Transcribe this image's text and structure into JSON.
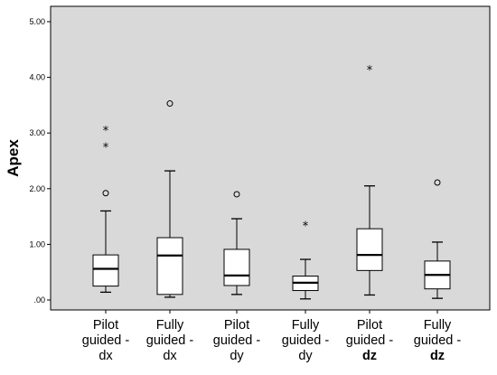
{
  "chart_data": {
    "type": "boxplot",
    "title": "",
    "xlabel": "",
    "ylabel": "Apex",
    "ylim": [
      0,
      5
    ],
    "y_ticks": [
      ".00",
      "1.00",
      "2.00",
      "3.00",
      "4.00",
      "5.00"
    ],
    "grid": false,
    "colors": {
      "plot_bg": "#d9d9d9",
      "box_fill": "#ffffff",
      "stroke": "#000000"
    },
    "categories": [
      {
        "lines": [
          "Pilot",
          "guided -",
          "dx"
        ],
        "bold_line": false
      },
      {
        "lines": [
          "Fully",
          "guided -",
          "dx"
        ],
        "bold_line": false
      },
      {
        "lines": [
          "Pilot",
          "guided -",
          "dy"
        ],
        "bold_line": false
      },
      {
        "lines": [
          "Fully",
          "guided -",
          "dy"
        ],
        "bold_line": false
      },
      {
        "lines": [
          "Pilot",
          "guided -",
          "dz"
        ],
        "bold_line": true
      },
      {
        "lines": [
          "Fully",
          "guided -",
          "dz"
        ],
        "bold_line": true
      }
    ],
    "boxes": [
      {
        "min": 0.14,
        "q1": 0.25,
        "median": 0.56,
        "q3": 0.81,
        "max": 1.6,
        "outliers": [
          1.92
        ],
        "extremes": [
          2.75,
          3.05
        ]
      },
      {
        "min": 0.05,
        "q1": 0.1,
        "median": 0.8,
        "q3": 1.12,
        "max": 2.32,
        "outliers": [
          3.53
        ],
        "extremes": []
      },
      {
        "min": 0.1,
        "q1": 0.26,
        "median": 0.44,
        "q3": 0.91,
        "max": 1.46,
        "outliers": [
          1.9
        ],
        "extremes": []
      },
      {
        "min": 0.02,
        "q1": 0.17,
        "median": 0.31,
        "q3": 0.43,
        "max": 0.73,
        "outliers": [],
        "extremes": [
          1.34
        ]
      },
      {
        "min": 0.09,
        "q1": 0.53,
        "median": 0.81,
        "q3": 1.28,
        "max": 2.05,
        "outliers": [],
        "extremes": [
          4.14
        ]
      },
      {
        "min": 0.03,
        "q1": 0.2,
        "median": 0.45,
        "q3": 0.7,
        "max": 1.04,
        "outliers": [
          2.11
        ],
        "extremes": []
      }
    ]
  }
}
